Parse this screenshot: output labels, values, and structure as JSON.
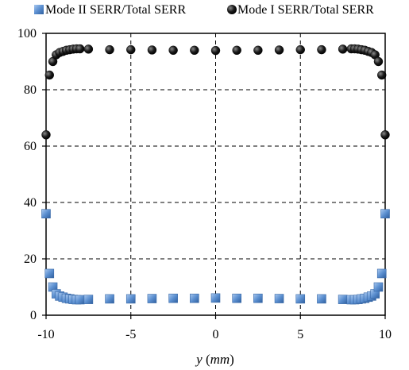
{
  "chart_data": {
    "type": "scatter",
    "xlabel_prefix": "y (",
    "xlabel_unit": "mm",
    "xlabel_suffix": ")",
    "ylabel": "",
    "xlim": [
      -10,
      10
    ],
    "ylim": [
      0,
      100
    ],
    "xticks": [
      -10,
      -5,
      0,
      5,
      10
    ],
    "yticks": [
      0,
      20,
      40,
      60,
      80,
      100
    ],
    "grid": "dashed",
    "legend_position": "top",
    "series": [
      {
        "name": "Mode II SERR/Total SERR",
        "marker": "square",
        "color": "#5b8fd0",
        "points": [
          [
            -10.0,
            36.0
          ],
          [
            -9.8,
            14.8
          ],
          [
            -9.6,
            10.0
          ],
          [
            -9.4,
            7.6
          ],
          [
            -9.2,
            6.8
          ],
          [
            -9.0,
            6.4
          ],
          [
            -8.8,
            6.0
          ],
          [
            -8.6,
            5.8
          ],
          [
            -8.4,
            5.6
          ],
          [
            -8.2,
            5.5
          ],
          [
            -8.0,
            5.5
          ],
          [
            -7.5,
            5.6
          ],
          [
            -6.25,
            5.8
          ],
          [
            -5.0,
            5.8
          ],
          [
            -3.75,
            5.9
          ],
          [
            -2.5,
            6.0
          ],
          [
            -1.25,
            6.0
          ],
          [
            0.0,
            6.1
          ],
          [
            1.25,
            6.0
          ],
          [
            2.5,
            6.0
          ],
          [
            3.75,
            5.9
          ],
          [
            5.0,
            5.8
          ],
          [
            6.25,
            5.8
          ],
          [
            7.5,
            5.6
          ],
          [
            8.0,
            5.5
          ],
          [
            8.2,
            5.5
          ],
          [
            8.4,
            5.6
          ],
          [
            8.6,
            5.8
          ],
          [
            8.8,
            6.0
          ],
          [
            9.0,
            6.4
          ],
          [
            9.2,
            6.8
          ],
          [
            9.4,
            7.6
          ],
          [
            9.6,
            10.0
          ],
          [
            9.8,
            14.8
          ],
          [
            10.0,
            36.0
          ]
        ]
      },
      {
        "name": "Mode I SERR/Total SERR",
        "marker": "circle",
        "color": "#1a1a1a",
        "points": [
          [
            -10.0,
            64.0
          ],
          [
            -9.8,
            85.2
          ],
          [
            -9.6,
            90.0
          ],
          [
            -9.4,
            92.4
          ],
          [
            -9.2,
            93.2
          ],
          [
            -9.0,
            93.6
          ],
          [
            -8.8,
            94.0
          ],
          [
            -8.6,
            94.2
          ],
          [
            -8.4,
            94.4
          ],
          [
            -8.2,
            94.5
          ],
          [
            -8.0,
            94.5
          ],
          [
            -7.5,
            94.4
          ],
          [
            -6.25,
            94.2
          ],
          [
            -5.0,
            94.2
          ],
          [
            -3.75,
            94.1
          ],
          [
            -2.5,
            94.0
          ],
          [
            -1.25,
            94.0
          ],
          [
            0.0,
            93.9
          ],
          [
            1.25,
            94.0
          ],
          [
            2.5,
            94.0
          ],
          [
            3.75,
            94.1
          ],
          [
            5.0,
            94.2
          ],
          [
            6.25,
            94.2
          ],
          [
            7.5,
            94.4
          ],
          [
            8.0,
            94.5
          ],
          [
            8.2,
            94.5
          ],
          [
            8.4,
            94.4
          ],
          [
            8.6,
            94.2
          ],
          [
            8.8,
            94.0
          ],
          [
            9.0,
            93.6
          ],
          [
            9.2,
            93.2
          ],
          [
            9.4,
            92.4
          ],
          [
            9.6,
            90.0
          ],
          [
            9.8,
            85.2
          ],
          [
            10.0,
            64.0
          ]
        ]
      }
    ]
  }
}
